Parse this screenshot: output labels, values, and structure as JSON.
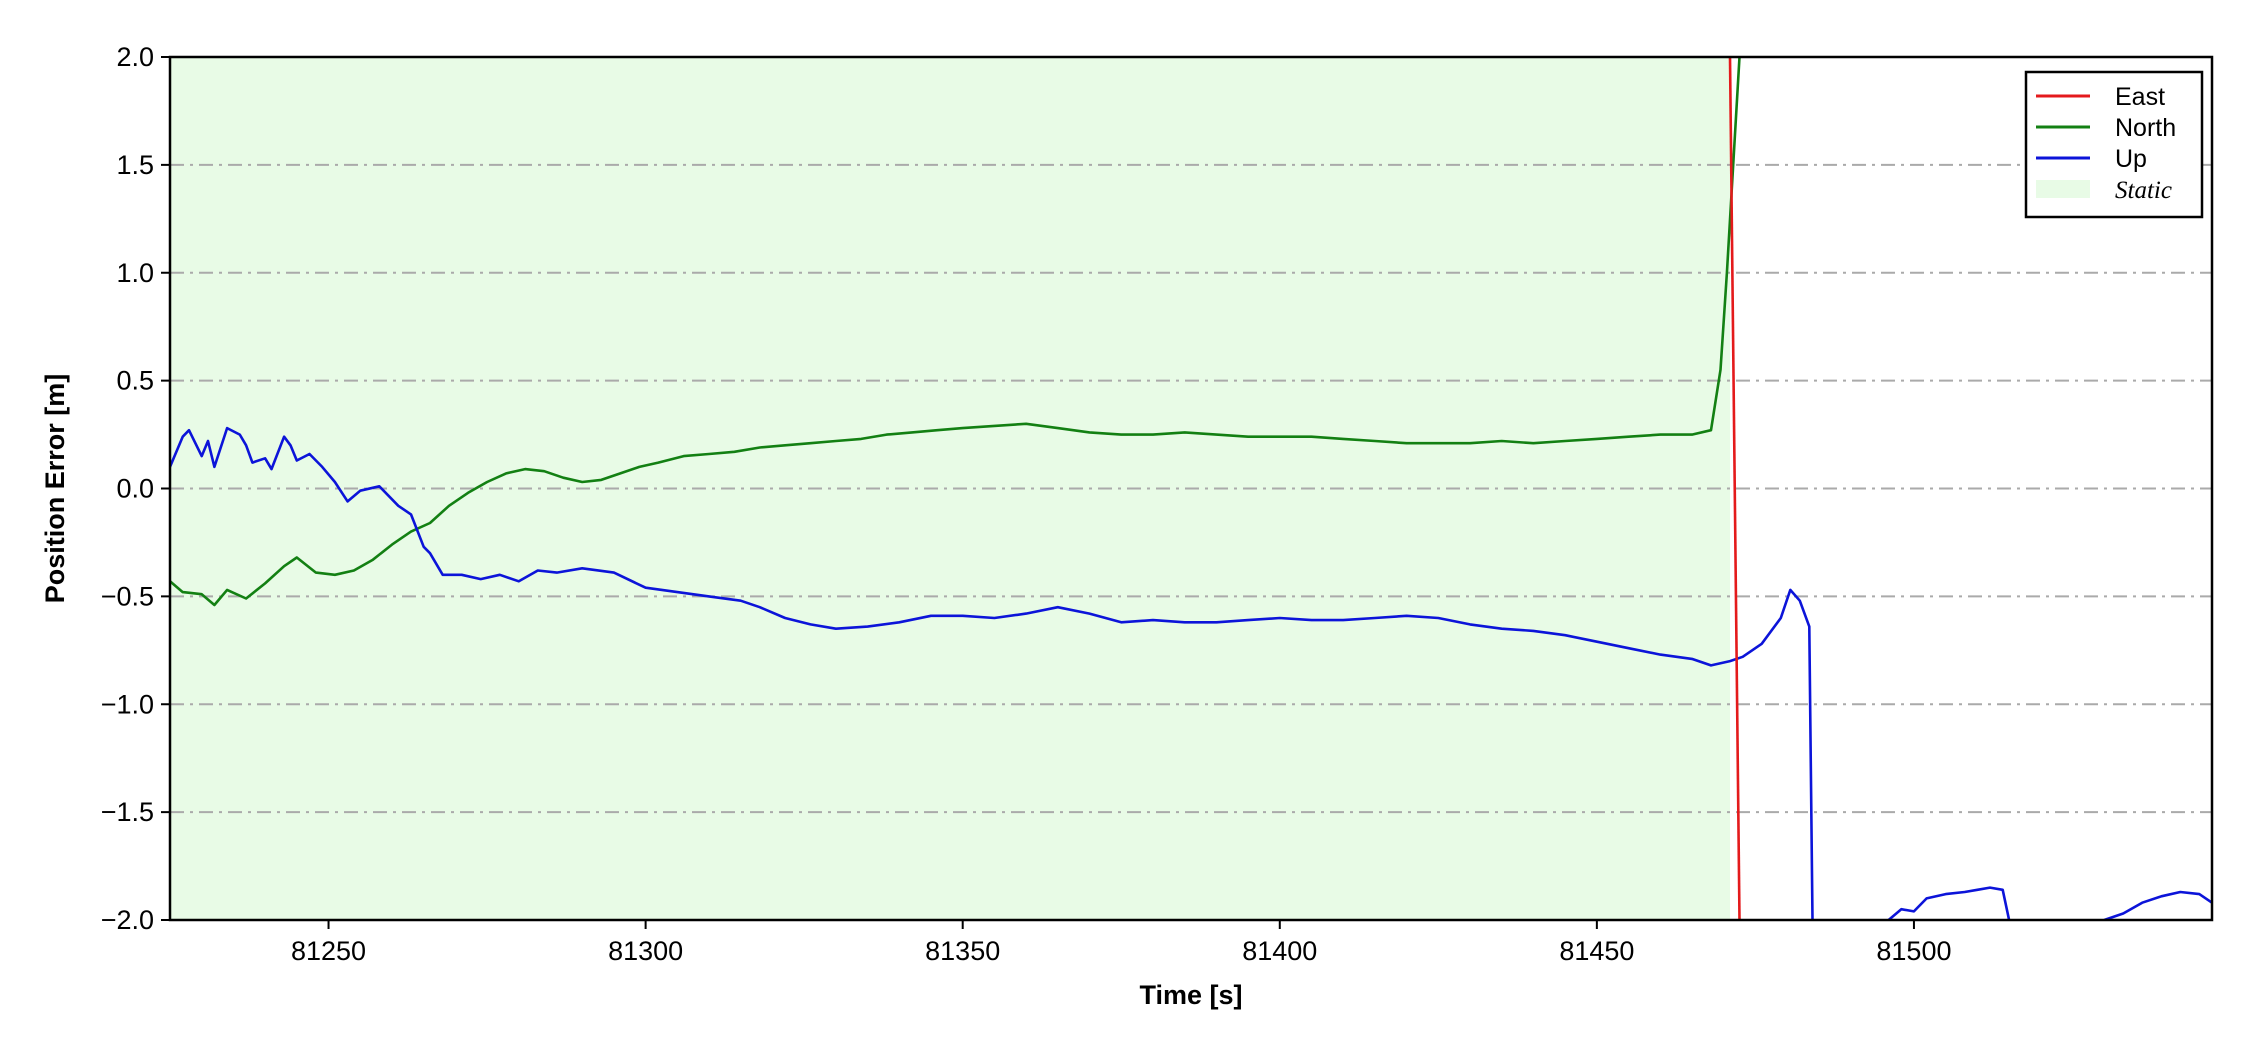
{
  "chart_data": {
    "type": "line",
    "title": "",
    "xlabel": "Time [s]",
    "ylabel": "Position Error [m]",
    "xlim": [
      81225,
      81547
    ],
    "ylim": [
      -2.0,
      2.0
    ],
    "x_ticks": [
      81250,
      81300,
      81350,
      81400,
      81450,
      81500
    ],
    "y_ticks": [
      -2.0,
      -1.5,
      -1.0,
      -0.5,
      0.0,
      0.5,
      1.0,
      1.5,
      2.0
    ],
    "y_tick_labels": [
      "−2.0",
      "−1.5",
      "−1.0",
      "−0.5",
      "0.0",
      "0.5",
      "1.0",
      "1.5",
      "2.0"
    ],
    "grid": {
      "axis": "y",
      "style": "dash-dot",
      "color": "#aaaaaa"
    },
    "legend_position": "top-right",
    "static_span": {
      "label": "Static",
      "x_start": 81225,
      "x_end": 81471,
      "color": "#e8fbe6"
    },
    "series": [
      {
        "name": "East",
        "color": "#e41a1c",
        "points": [
          [
            81471.0,
            2.0
          ],
          [
            81472.5,
            -2.0
          ]
        ]
      },
      {
        "name": "North",
        "color": "#138013",
        "points": [
          [
            81225,
            -0.43
          ],
          [
            81227,
            -0.48
          ],
          [
            81230,
            -0.49
          ],
          [
            81232,
            -0.54
          ],
          [
            81234,
            -0.47
          ],
          [
            81237,
            -0.51
          ],
          [
            81240,
            -0.44
          ],
          [
            81243,
            -0.36
          ],
          [
            81245,
            -0.32
          ],
          [
            81248,
            -0.39
          ],
          [
            81251,
            -0.4
          ],
          [
            81254,
            -0.38
          ],
          [
            81257,
            -0.33
          ],
          [
            81260,
            -0.26
          ],
          [
            81263,
            -0.2
          ],
          [
            81266,
            -0.16
          ],
          [
            81269,
            -0.08
          ],
          [
            81272,
            -0.02
          ],
          [
            81275,
            0.03
          ],
          [
            81278,
            0.07
          ],
          [
            81281,
            0.09
          ],
          [
            81284,
            0.08
          ],
          [
            81287,
            0.05
          ],
          [
            81290,
            0.03
          ],
          [
            81293,
            0.04
          ],
          [
            81296,
            0.07
          ],
          [
            81299,
            0.1
          ],
          [
            81302,
            0.12
          ],
          [
            81306,
            0.15
          ],
          [
            81310,
            0.16
          ],
          [
            81314,
            0.17
          ],
          [
            81318,
            0.19
          ],
          [
            81322,
            0.2
          ],
          [
            81326,
            0.21
          ],
          [
            81330,
            0.22
          ],
          [
            81334,
            0.23
          ],
          [
            81338,
            0.25
          ],
          [
            81342,
            0.26
          ],
          [
            81346,
            0.27
          ],
          [
            81350,
            0.28
          ],
          [
            81355,
            0.29
          ],
          [
            81360,
            0.3
          ],
          [
            81365,
            0.28
          ],
          [
            81370,
            0.26
          ],
          [
            81375,
            0.25
          ],
          [
            81380,
            0.25
          ],
          [
            81385,
            0.26
          ],
          [
            81390,
            0.25
          ],
          [
            81395,
            0.24
          ],
          [
            81400,
            0.24
          ],
          [
            81405,
            0.24
          ],
          [
            81410,
            0.23
          ],
          [
            81415,
            0.22
          ],
          [
            81420,
            0.21
          ],
          [
            81425,
            0.21
          ],
          [
            81430,
            0.21
          ],
          [
            81435,
            0.22
          ],
          [
            81440,
            0.21
          ],
          [
            81445,
            0.22
          ],
          [
            81450,
            0.23
          ],
          [
            81455,
            0.24
          ],
          [
            81460,
            0.25
          ],
          [
            81465,
            0.25
          ],
          [
            81468,
            0.27
          ],
          [
            81469.5,
            0.55
          ],
          [
            81470.5,
            1.0
          ],
          [
            81471.5,
            1.5
          ],
          [
            81472.5,
            2.0
          ]
        ]
      },
      {
        "name": "Up",
        "color": "#0c14d9",
        "points": [
          [
            81225,
            0.1
          ],
          [
            81227,
            0.24
          ],
          [
            81228,
            0.27
          ],
          [
            81230,
            0.15
          ],
          [
            81231,
            0.22
          ],
          [
            81232,
            0.1
          ],
          [
            81234,
            0.28
          ],
          [
            81236,
            0.25
          ],
          [
            81237,
            0.2
          ],
          [
            81238,
            0.12
          ],
          [
            81240,
            0.14
          ],
          [
            81241,
            0.09
          ],
          [
            81243,
            0.24
          ],
          [
            81244,
            0.2
          ],
          [
            81245,
            0.13
          ],
          [
            81247,
            0.16
          ],
          [
            81249,
            0.1
          ],
          [
            81251,
            0.03
          ],
          [
            81253,
            -0.06
          ],
          [
            81255,
            -0.01
          ],
          [
            81258,
            0.01
          ],
          [
            81261,
            -0.08
          ],
          [
            81263,
            -0.12
          ],
          [
            81265,
            -0.27
          ],
          [
            81266,
            -0.3
          ],
          [
            81268,
            -0.4
          ],
          [
            81271,
            -0.4
          ],
          [
            81274,
            -0.42
          ],
          [
            81277,
            -0.4
          ],
          [
            81280,
            -0.43
          ],
          [
            81283,
            -0.38
          ],
          [
            81286,
            -0.39
          ],
          [
            81290,
            -0.37
          ],
          [
            81295,
            -0.39
          ],
          [
            81300,
            -0.46
          ],
          [
            81305,
            -0.48
          ],
          [
            81310,
            -0.5
          ],
          [
            81315,
            -0.52
          ],
          [
            81318,
            -0.55
          ],
          [
            81322,
            -0.6
          ],
          [
            81326,
            -0.63
          ],
          [
            81330,
            -0.65
          ],
          [
            81335,
            -0.64
          ],
          [
            81340,
            -0.62
          ],
          [
            81345,
            -0.59
          ],
          [
            81350,
            -0.59
          ],
          [
            81355,
            -0.6
          ],
          [
            81360,
            -0.58
          ],
          [
            81365,
            -0.55
          ],
          [
            81370,
            -0.58
          ],
          [
            81375,
            -0.62
          ],
          [
            81380,
            -0.61
          ],
          [
            81385,
            -0.62
          ],
          [
            81390,
            -0.62
          ],
          [
            81395,
            -0.61
          ],
          [
            81400,
            -0.6
          ],
          [
            81405,
            -0.61
          ],
          [
            81410,
            -0.61
          ],
          [
            81415,
            -0.6
          ],
          [
            81420,
            -0.59
          ],
          [
            81425,
            -0.6
          ],
          [
            81430,
            -0.63
          ],
          [
            81435,
            -0.65
          ],
          [
            81440,
            -0.66
          ],
          [
            81445,
            -0.68
          ],
          [
            81450,
            -0.71
          ],
          [
            81455,
            -0.74
          ],
          [
            81460,
            -0.77
          ],
          [
            81465,
            -0.79
          ],
          [
            81468,
            -0.82
          ],
          [
            81471,
            -0.8
          ],
          [
            81473,
            -0.78
          ],
          [
            81476,
            -0.72
          ],
          [
            81479,
            -0.6
          ],
          [
            81480.5,
            -0.47
          ],
          [
            81482,
            -0.52
          ],
          [
            81483.5,
            -0.64
          ],
          [
            81484,
            -2.0
          ]
        ],
        "segments_below_floor": [
          [
            [
              81496,
              -2.0
            ],
            [
              81498,
              -1.95
            ],
            [
              81500,
              -1.96
            ],
            [
              81502,
              -1.9
            ],
            [
              81505,
              -1.88
            ],
            [
              81508,
              -1.87
            ],
            [
              81510,
              -1.86
            ],
            [
              81512,
              -1.85
            ],
            [
              81514,
              -1.86
            ],
            [
              81515,
              -2.0
            ]
          ],
          [
            [
              81530,
              -2.0
            ],
            [
              81533,
              -1.97
            ],
            [
              81536,
              -1.92
            ],
            [
              81539,
              -1.89
            ],
            [
              81542,
              -1.87
            ],
            [
              81545,
              -1.88
            ],
            [
              81547,
              -1.92
            ]
          ]
        ]
      }
    ]
  }
}
